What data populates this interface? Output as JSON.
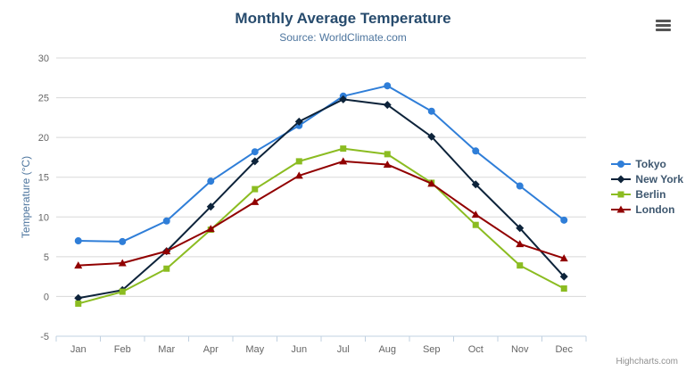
{
  "header": {
    "title": "Monthly Average Temperature",
    "subtitle": "Source: WorldClimate.com"
  },
  "export_menu": {
    "icon": "hamburger-icon"
  },
  "credit": {
    "label": "Highcharts.com"
  },
  "chart_data": {
    "type": "line",
    "title": "Monthly Average Temperature",
    "subtitle": "Source: WorldClimate.com",
    "categories": [
      "Jan",
      "Feb",
      "Mar",
      "Apr",
      "May",
      "Jun",
      "Jul",
      "Aug",
      "Sep",
      "Oct",
      "Nov",
      "Dec"
    ],
    "series": [
      {
        "name": "Tokyo",
        "color": "#2f7ed8",
        "marker": "circle",
        "values": [
          7.0,
          6.9,
          9.5,
          14.5,
          18.2,
          21.5,
          25.2,
          26.5,
          23.3,
          18.3,
          13.9,
          9.6
        ]
      },
      {
        "name": "New York",
        "color": "#0d233a",
        "marker": "diamond",
        "values": [
          -0.2,
          0.8,
          5.7,
          11.3,
          17.0,
          22.0,
          24.8,
          24.1,
          20.1,
          14.1,
          8.6,
          2.5
        ]
      },
      {
        "name": "Berlin",
        "color": "#8bbc21",
        "marker": "square",
        "values": [
          -0.9,
          0.6,
          3.5,
          8.4,
          13.5,
          17.0,
          18.6,
          17.9,
          14.3,
          9.0,
          3.9,
          1.0
        ]
      },
      {
        "name": "London",
        "color": "#910000",
        "marker": "triangle",
        "values": [
          3.9,
          4.2,
          5.7,
          8.5,
          11.9,
          15.2,
          17.0,
          16.6,
          14.2,
          10.3,
          6.6,
          4.8
        ]
      }
    ],
    "xlabel": "",
    "ylabel": "Temperature (°C)",
    "ylim": [
      -5,
      30
    ],
    "ytick_interval": 5,
    "yticks": [
      -5,
      0,
      5,
      10,
      15,
      20,
      25,
      30
    ],
    "grid": true,
    "legend_position": "right",
    "colors": {
      "grid_line": "#d8d8d8",
      "axis_line": "#c0d0e0",
      "axis_label": "#666666",
      "title": "#274b6d",
      "subtitle": "#4d759e",
      "legend_text": "#3e576f",
      "credit_text": "#909090"
    }
  }
}
